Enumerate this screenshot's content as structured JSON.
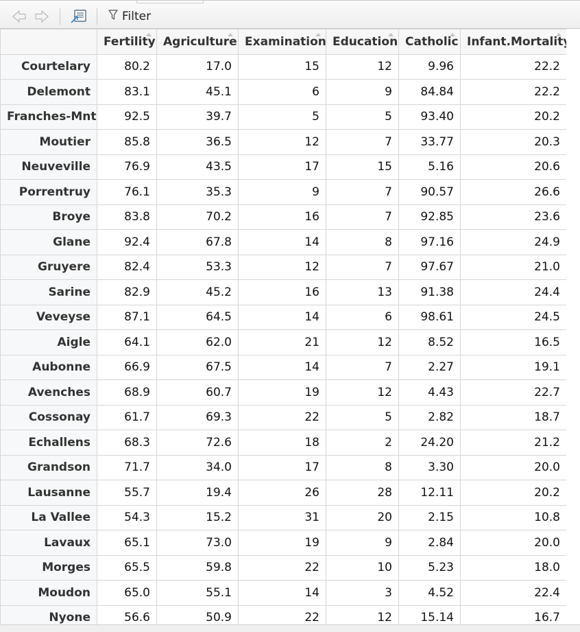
{
  "toolbar": {
    "back_icon": "back-arrow-icon",
    "forward_icon": "forward-arrow-icon",
    "popout_icon": "show-in-window-icon",
    "filter_icon": "funnel-icon",
    "filter_label": "Filter"
  },
  "table": {
    "columns": [
      "Fertility",
      "Agriculture",
      "Examination",
      "Education",
      "Catholic",
      "Infant.Mortality"
    ],
    "rows": [
      {
        "name": "Courtelary",
        "values": [
          "80.2",
          "17.0",
          "15",
          "12",
          "9.96",
          "22.2"
        ]
      },
      {
        "name": "Delemont",
        "values": [
          "83.1",
          "45.1",
          "6",
          "9",
          "84.84",
          "22.2"
        ]
      },
      {
        "name": "Franches-Mnt",
        "values": [
          "92.5",
          "39.7",
          "5",
          "5",
          "93.40",
          "20.2"
        ]
      },
      {
        "name": "Moutier",
        "values": [
          "85.8",
          "36.5",
          "12",
          "7",
          "33.77",
          "20.3"
        ]
      },
      {
        "name": "Neuveville",
        "values": [
          "76.9",
          "43.5",
          "17",
          "15",
          "5.16",
          "20.6"
        ]
      },
      {
        "name": "Porrentruy",
        "values": [
          "76.1",
          "35.3",
          "9",
          "7",
          "90.57",
          "26.6"
        ]
      },
      {
        "name": "Broye",
        "values": [
          "83.8",
          "70.2",
          "16",
          "7",
          "92.85",
          "23.6"
        ]
      },
      {
        "name": "Glane",
        "values": [
          "92.4",
          "67.8",
          "14",
          "8",
          "97.16",
          "24.9"
        ]
      },
      {
        "name": "Gruyere",
        "values": [
          "82.4",
          "53.3",
          "12",
          "7",
          "97.67",
          "21.0"
        ]
      },
      {
        "name": "Sarine",
        "values": [
          "82.9",
          "45.2",
          "16",
          "13",
          "91.38",
          "24.4"
        ]
      },
      {
        "name": "Veveyse",
        "values": [
          "87.1",
          "64.5",
          "14",
          "6",
          "98.61",
          "24.5"
        ]
      },
      {
        "name": "Aigle",
        "values": [
          "64.1",
          "62.0",
          "21",
          "12",
          "8.52",
          "16.5"
        ]
      },
      {
        "name": "Aubonne",
        "values": [
          "66.9",
          "67.5",
          "14",
          "7",
          "2.27",
          "19.1"
        ]
      },
      {
        "name": "Avenches",
        "values": [
          "68.9",
          "60.7",
          "19",
          "12",
          "4.43",
          "22.7"
        ]
      },
      {
        "name": "Cossonay",
        "values": [
          "61.7",
          "69.3",
          "22",
          "5",
          "2.82",
          "18.7"
        ]
      },
      {
        "name": "Echallens",
        "values": [
          "68.3",
          "72.6",
          "18",
          "2",
          "24.20",
          "21.2"
        ]
      },
      {
        "name": "Grandson",
        "values": [
          "71.7",
          "34.0",
          "17",
          "8",
          "3.30",
          "20.0"
        ]
      },
      {
        "name": "Lausanne",
        "values": [
          "55.7",
          "19.4",
          "26",
          "28",
          "12.11",
          "20.2"
        ]
      },
      {
        "name": "La Vallee",
        "values": [
          "54.3",
          "15.2",
          "31",
          "20",
          "2.15",
          "10.8"
        ]
      },
      {
        "name": "Lavaux",
        "values": [
          "65.1",
          "73.0",
          "19",
          "9",
          "2.84",
          "20.0"
        ]
      },
      {
        "name": "Morges",
        "values": [
          "65.5",
          "59.8",
          "22",
          "10",
          "5.23",
          "18.0"
        ]
      },
      {
        "name": "Moudon",
        "values": [
          "65.0",
          "55.1",
          "14",
          "3",
          "4.52",
          "22.4"
        ]
      },
      {
        "name": "Nyone",
        "values": [
          "56.6",
          "50.9",
          "22",
          "12",
          "15.14",
          "16.7"
        ]
      }
    ]
  }
}
